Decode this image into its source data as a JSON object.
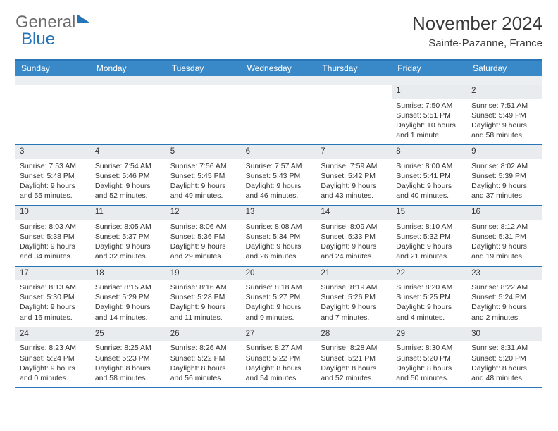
{
  "brand": {
    "word1": "General",
    "word2": "Blue"
  },
  "title": "November 2024",
  "location": "Sainte-Pazanne, France",
  "colors": {
    "accent": "#3989c9",
    "border": "#2775b6",
    "daynum_bg": "#e9ecef",
    "spacer_bg": "#eceff2",
    "text": "#333333",
    "logo_gray": "#6b6b6b"
  },
  "day_headers": [
    "Sunday",
    "Monday",
    "Tuesday",
    "Wednesday",
    "Thursday",
    "Friday",
    "Saturday"
  ],
  "weeks": [
    [
      null,
      null,
      null,
      null,
      null,
      {
        "n": "1",
        "sr": "Sunrise: 7:50 AM",
        "ss": "Sunset: 5:51 PM",
        "dl": "Daylight: 10 hours and 1 minute."
      },
      {
        "n": "2",
        "sr": "Sunrise: 7:51 AM",
        "ss": "Sunset: 5:49 PM",
        "dl": "Daylight: 9 hours and 58 minutes."
      }
    ],
    [
      {
        "n": "3",
        "sr": "Sunrise: 7:53 AM",
        "ss": "Sunset: 5:48 PM",
        "dl": "Daylight: 9 hours and 55 minutes."
      },
      {
        "n": "4",
        "sr": "Sunrise: 7:54 AM",
        "ss": "Sunset: 5:46 PM",
        "dl": "Daylight: 9 hours and 52 minutes."
      },
      {
        "n": "5",
        "sr": "Sunrise: 7:56 AM",
        "ss": "Sunset: 5:45 PM",
        "dl": "Daylight: 9 hours and 49 minutes."
      },
      {
        "n": "6",
        "sr": "Sunrise: 7:57 AM",
        "ss": "Sunset: 5:43 PM",
        "dl": "Daylight: 9 hours and 46 minutes."
      },
      {
        "n": "7",
        "sr": "Sunrise: 7:59 AM",
        "ss": "Sunset: 5:42 PM",
        "dl": "Daylight: 9 hours and 43 minutes."
      },
      {
        "n": "8",
        "sr": "Sunrise: 8:00 AM",
        "ss": "Sunset: 5:41 PM",
        "dl": "Daylight: 9 hours and 40 minutes."
      },
      {
        "n": "9",
        "sr": "Sunrise: 8:02 AM",
        "ss": "Sunset: 5:39 PM",
        "dl": "Daylight: 9 hours and 37 minutes."
      }
    ],
    [
      {
        "n": "10",
        "sr": "Sunrise: 8:03 AM",
        "ss": "Sunset: 5:38 PM",
        "dl": "Daylight: 9 hours and 34 minutes."
      },
      {
        "n": "11",
        "sr": "Sunrise: 8:05 AM",
        "ss": "Sunset: 5:37 PM",
        "dl": "Daylight: 9 hours and 32 minutes."
      },
      {
        "n": "12",
        "sr": "Sunrise: 8:06 AM",
        "ss": "Sunset: 5:36 PM",
        "dl": "Daylight: 9 hours and 29 minutes."
      },
      {
        "n": "13",
        "sr": "Sunrise: 8:08 AM",
        "ss": "Sunset: 5:34 PM",
        "dl": "Daylight: 9 hours and 26 minutes."
      },
      {
        "n": "14",
        "sr": "Sunrise: 8:09 AM",
        "ss": "Sunset: 5:33 PM",
        "dl": "Daylight: 9 hours and 24 minutes."
      },
      {
        "n": "15",
        "sr": "Sunrise: 8:10 AM",
        "ss": "Sunset: 5:32 PM",
        "dl": "Daylight: 9 hours and 21 minutes."
      },
      {
        "n": "16",
        "sr": "Sunrise: 8:12 AM",
        "ss": "Sunset: 5:31 PM",
        "dl": "Daylight: 9 hours and 19 minutes."
      }
    ],
    [
      {
        "n": "17",
        "sr": "Sunrise: 8:13 AM",
        "ss": "Sunset: 5:30 PM",
        "dl": "Daylight: 9 hours and 16 minutes."
      },
      {
        "n": "18",
        "sr": "Sunrise: 8:15 AM",
        "ss": "Sunset: 5:29 PM",
        "dl": "Daylight: 9 hours and 14 minutes."
      },
      {
        "n": "19",
        "sr": "Sunrise: 8:16 AM",
        "ss": "Sunset: 5:28 PM",
        "dl": "Daylight: 9 hours and 11 minutes."
      },
      {
        "n": "20",
        "sr": "Sunrise: 8:18 AM",
        "ss": "Sunset: 5:27 PM",
        "dl": "Daylight: 9 hours and 9 minutes."
      },
      {
        "n": "21",
        "sr": "Sunrise: 8:19 AM",
        "ss": "Sunset: 5:26 PM",
        "dl": "Daylight: 9 hours and 7 minutes."
      },
      {
        "n": "22",
        "sr": "Sunrise: 8:20 AM",
        "ss": "Sunset: 5:25 PM",
        "dl": "Daylight: 9 hours and 4 minutes."
      },
      {
        "n": "23",
        "sr": "Sunrise: 8:22 AM",
        "ss": "Sunset: 5:24 PM",
        "dl": "Daylight: 9 hours and 2 minutes."
      }
    ],
    [
      {
        "n": "24",
        "sr": "Sunrise: 8:23 AM",
        "ss": "Sunset: 5:24 PM",
        "dl": "Daylight: 9 hours and 0 minutes."
      },
      {
        "n": "25",
        "sr": "Sunrise: 8:25 AM",
        "ss": "Sunset: 5:23 PM",
        "dl": "Daylight: 8 hours and 58 minutes."
      },
      {
        "n": "26",
        "sr": "Sunrise: 8:26 AM",
        "ss": "Sunset: 5:22 PM",
        "dl": "Daylight: 8 hours and 56 minutes."
      },
      {
        "n": "27",
        "sr": "Sunrise: 8:27 AM",
        "ss": "Sunset: 5:22 PM",
        "dl": "Daylight: 8 hours and 54 minutes."
      },
      {
        "n": "28",
        "sr": "Sunrise: 8:28 AM",
        "ss": "Sunset: 5:21 PM",
        "dl": "Daylight: 8 hours and 52 minutes."
      },
      {
        "n": "29",
        "sr": "Sunrise: 8:30 AM",
        "ss": "Sunset: 5:20 PM",
        "dl": "Daylight: 8 hours and 50 minutes."
      },
      {
        "n": "30",
        "sr": "Sunrise: 8:31 AM",
        "ss": "Sunset: 5:20 PM",
        "dl": "Daylight: 8 hours and 48 minutes."
      }
    ]
  ]
}
